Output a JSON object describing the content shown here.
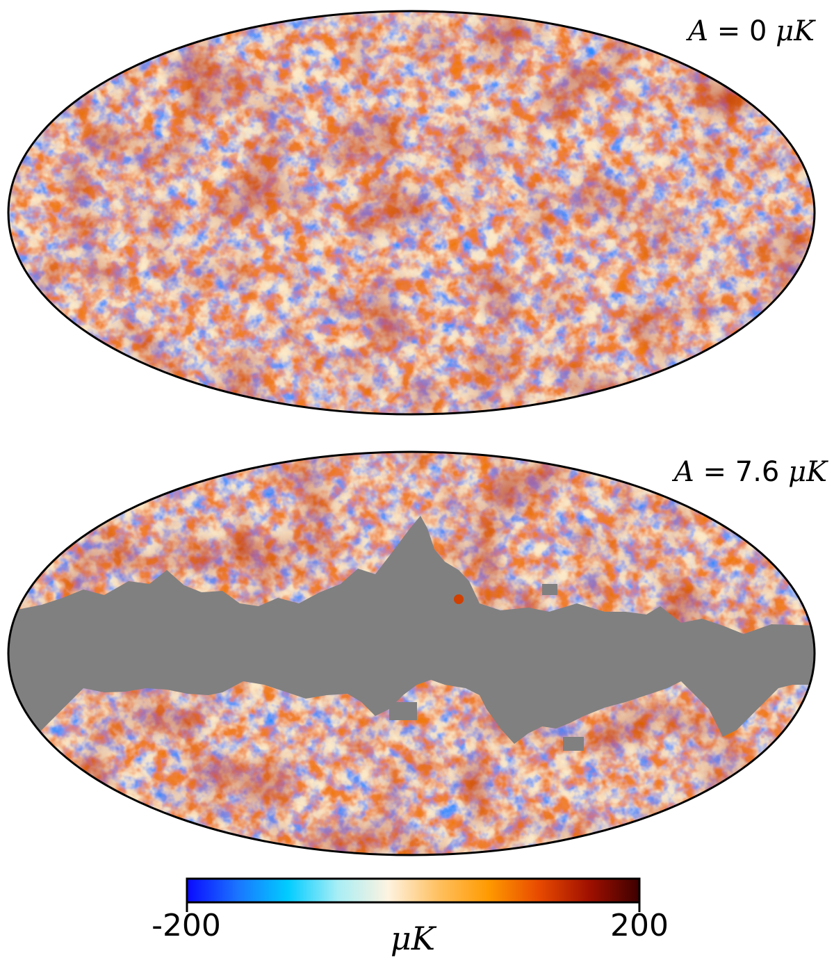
{
  "panels": [
    {
      "label_prefix": "A",
      "label_eq": " = ",
      "amplitude": "0",
      "unit_symbol": "μ",
      "unit_letter": "K",
      "masked": false
    },
    {
      "label_prefix": "A",
      "label_eq": " = ",
      "amplitude": "7.6",
      "unit_symbol": "μ",
      "unit_letter": "K",
      "masked": true
    }
  ],
  "colorbar": {
    "min_label": "-200",
    "max_label": "200",
    "unit_symbol": "μ",
    "unit_letter": "K",
    "min_value": -200,
    "max_value": 200,
    "stops": [
      "#0a0aff",
      "#1a74ff",
      "#00ccff",
      "#a8eef5",
      "#fdf3e0",
      "#ffc060",
      "#ff9a00",
      "#e84a00",
      "#a01000",
      "#3c0000"
    ]
  },
  "colors": {
    "mask": "#808080",
    "outline": "#000000"
  }
}
